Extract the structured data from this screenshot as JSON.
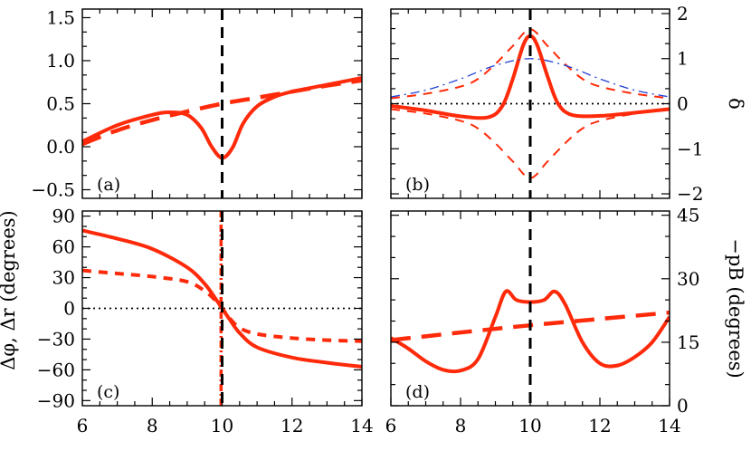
{
  "chart_data": [
    {
      "type": "line",
      "panel_label": "(a)",
      "xlim": [
        6,
        14
      ],
      "ylim": [
        -0.6,
        1.6
      ],
      "xticks": [
        6,
        8,
        10,
        12,
        14
      ],
      "yticks": [
        -0.5,
        0.0,
        0.5,
        1.0,
        1.5
      ],
      "ytick_labels": [
        "−0.5",
        "0.0",
        "0.5",
        "1.0",
        "1.5"
      ],
      "right_axis": null,
      "ylabel_left": "",
      "ylabel_right": "",
      "vline_x": 10,
      "series": [
        {
          "style": "solid-thick",
          "color": "#ff2a0a",
          "x": [
            6,
            7,
            8,
            8.5,
            9,
            9.4,
            9.7,
            10,
            10.3,
            10.6,
            11,
            11.5,
            12,
            13,
            14
          ],
          "y": [
            0.06,
            0.25,
            0.37,
            0.4,
            0.37,
            0.22,
            0.0,
            -0.13,
            -0.01,
            0.27,
            0.47,
            0.58,
            0.64,
            0.72,
            0.8
          ]
        },
        {
          "style": "long-dash-thick",
          "color": "#ff2a0a",
          "x": [
            6,
            7,
            8,
            9,
            10,
            11,
            12,
            13,
            14
          ],
          "y": [
            0.03,
            0.19,
            0.31,
            0.41,
            0.5,
            0.57,
            0.64,
            0.71,
            0.77
          ]
        }
      ]
    },
    {
      "type": "line",
      "panel_label": "(b)",
      "xlim": [
        6,
        14
      ],
      "ylim": [
        -2.1,
        2.1
      ],
      "xticks": [
        6,
        8,
        10,
        12,
        14
      ],
      "yticks": [
        -2,
        -1,
        0,
        1,
        2
      ],
      "ytick_labels": [
        "−2",
        "−1",
        "0",
        "1",
        "2"
      ],
      "right_axis": "y",
      "ylabel_left": "",
      "ylabel_right": "δ",
      "vline_x": 10,
      "hline_y": 0,
      "series": [
        {
          "style": "solid-thick",
          "color": "#ff2a0a",
          "x": [
            6,
            7,
            8,
            8.8,
            9.2,
            9.5,
            9.8,
            10,
            10.2,
            10.5,
            10.8,
            11.2,
            12,
            13,
            14
          ],
          "y": [
            -0.05,
            -0.15,
            -0.28,
            -0.3,
            -0.05,
            0.55,
            1.3,
            1.5,
            1.3,
            0.6,
            0.0,
            -0.25,
            -0.27,
            -0.2,
            -0.12
          ]
        },
        {
          "style": "dash-thin",
          "color": "#ff2a0a",
          "x": [
            6,
            7,
            8,
            8.5,
            9,
            9.5,
            10,
            10.5,
            11,
            11.5,
            12,
            13,
            14
          ],
          "y": [
            0.12,
            0.22,
            0.38,
            0.55,
            0.88,
            1.28,
            1.65,
            1.28,
            0.88,
            0.55,
            0.38,
            0.22,
            0.12
          ]
        },
        {
          "style": "dash-thin",
          "color": "#ff2a0a",
          "x": [
            6,
            7,
            8,
            8.5,
            9,
            9.5,
            10,
            10.5,
            11,
            11.5,
            12,
            13,
            14
          ],
          "y": [
            -0.12,
            -0.22,
            -0.38,
            -0.55,
            -0.88,
            -1.28,
            -1.65,
            -1.28,
            -0.88,
            -0.55,
            -0.38,
            -0.22,
            -0.12
          ]
        },
        {
          "style": "dash-dot-thin",
          "color": "#1f3fd6",
          "x": [
            6,
            7,
            8,
            9,
            10,
            11,
            12,
            13,
            14
          ],
          "y": [
            0.15,
            0.3,
            0.55,
            0.85,
            1.0,
            0.85,
            0.55,
            0.3,
            0.15
          ]
        }
      ]
    },
    {
      "type": "line",
      "panel_label": "(c)",
      "xlim": [
        6,
        14
      ],
      "ylim": [
        -95,
        95
      ],
      "xticks": [
        6,
        8,
        10,
        12,
        14
      ],
      "xtick_labels": [
        "6",
        "8",
        "10",
        "12",
        "14"
      ],
      "yticks": [
        -90,
        -60,
        -30,
        0,
        30,
        60,
        90
      ],
      "ytick_labels": [
        "−90",
        "−60",
        "−30",
        "0",
        "30",
        "60",
        "90"
      ],
      "right_axis": null,
      "ylabel_left": "Δφ, Δr (degrees)",
      "ylabel_right": "",
      "vline_x": 10,
      "hline_y": 0,
      "series": [
        {
          "style": "solid-thick",
          "color": "#ff2a0a",
          "x": [
            6,
            7,
            8,
            9,
            9.5,
            9.8,
            10,
            10.2,
            10.5,
            11,
            12,
            13,
            14
          ],
          "y": [
            76,
            68,
            58,
            40,
            24,
            10,
            0,
            -10,
            -24,
            -38,
            -48,
            -53,
            -57
          ]
        },
        {
          "style": "short-dash-thick",
          "color": "#ff2a0a",
          "x": [
            6,
            7,
            8,
            9,
            9.5,
            9.8,
            10,
            10.2,
            10.5,
            11,
            12,
            13,
            14
          ],
          "y": [
            37,
            34,
            31,
            26,
            17,
            8,
            0,
            -9,
            -19,
            -25,
            -29,
            -31,
            -32
          ]
        },
        {
          "style": "dash-dot-vertical",
          "color": "#ff2a0a",
          "x": [
            9.97,
            9.97
          ],
          "y": [
            -95,
            95
          ]
        }
      ]
    },
    {
      "type": "line",
      "panel_label": "(d)",
      "xlim": [
        6,
        14
      ],
      "ylim": [
        0,
        46
      ],
      "xticks": [
        6,
        8,
        10,
        12,
        14
      ],
      "xtick_labels": [
        "6",
        "8",
        "10",
        "12",
        "14"
      ],
      "yticks": [
        0,
        15,
        30,
        45
      ],
      "ytick_labels": [
        "0",
        "15",
        "30",
        "45"
      ],
      "right_axis": "y",
      "ylabel_left": "",
      "ylabel_right": "−pB (degrees)",
      "vline_x": 10,
      "series": [
        {
          "style": "solid-thick",
          "color": "#ff2a0a",
          "x": [
            6,
            6.5,
            7,
            7.5,
            8,
            8.5,
            9,
            9.3,
            9.6,
            10,
            10.4,
            10.7,
            11,
            11.5,
            12,
            12.5,
            13,
            13.5,
            14
          ],
          "y": [
            16,
            13.5,
            10.5,
            8.5,
            8.3,
            11,
            21,
            27,
            25,
            24.5,
            25,
            27,
            24,
            15,
            10,
            9.5,
            11.5,
            15,
            21
          ]
        },
        {
          "style": "long-dash-thick",
          "color": "#ff2a0a",
          "x": [
            6,
            8,
            10,
            12,
            14
          ],
          "y": [
            15.5,
            17.3,
            19,
            20.5,
            22
          ]
        }
      ]
    }
  ]
}
